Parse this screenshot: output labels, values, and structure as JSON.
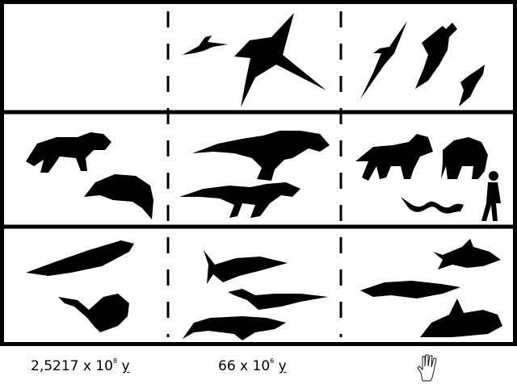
{
  "captions": {
    "left": {
      "mantissa": "2,5217 x 10",
      "exponent": "8",
      "unit": "y"
    },
    "middle": {
      "mantissa": "66 x 10",
      "exponent": "6",
      "unit": "y"
    },
    "right_icon": "hand-icon"
  },
  "rows": [
    {
      "niche": "flying",
      "icons": [
        "pterosaur-small-icon",
        "pterosaur-large-icon",
        "albatross-icon",
        "eagle-icon",
        "hawk-icon"
      ]
    },
    {
      "niche": "land",
      "icons": [
        "gorgonopsid-icon",
        "dicynodont-icon",
        "tyrannosaur-icon",
        "theropod-icon",
        "wolf-icon",
        "hyena-icon",
        "snake-icon",
        "human-icon"
      ]
    },
    {
      "niche": "sea",
      "icons": [
        "ichthyosaur-early-icon",
        "placodont-icon",
        "ichthyosaur-icon",
        "plesiosaur-icon",
        "mosasaur-icon",
        "shark-icon",
        "dolphin-icon",
        "orca-icon"
      ]
    }
  ],
  "colors": {
    "ink": "#000000",
    "paper": "#ffffff"
  }
}
